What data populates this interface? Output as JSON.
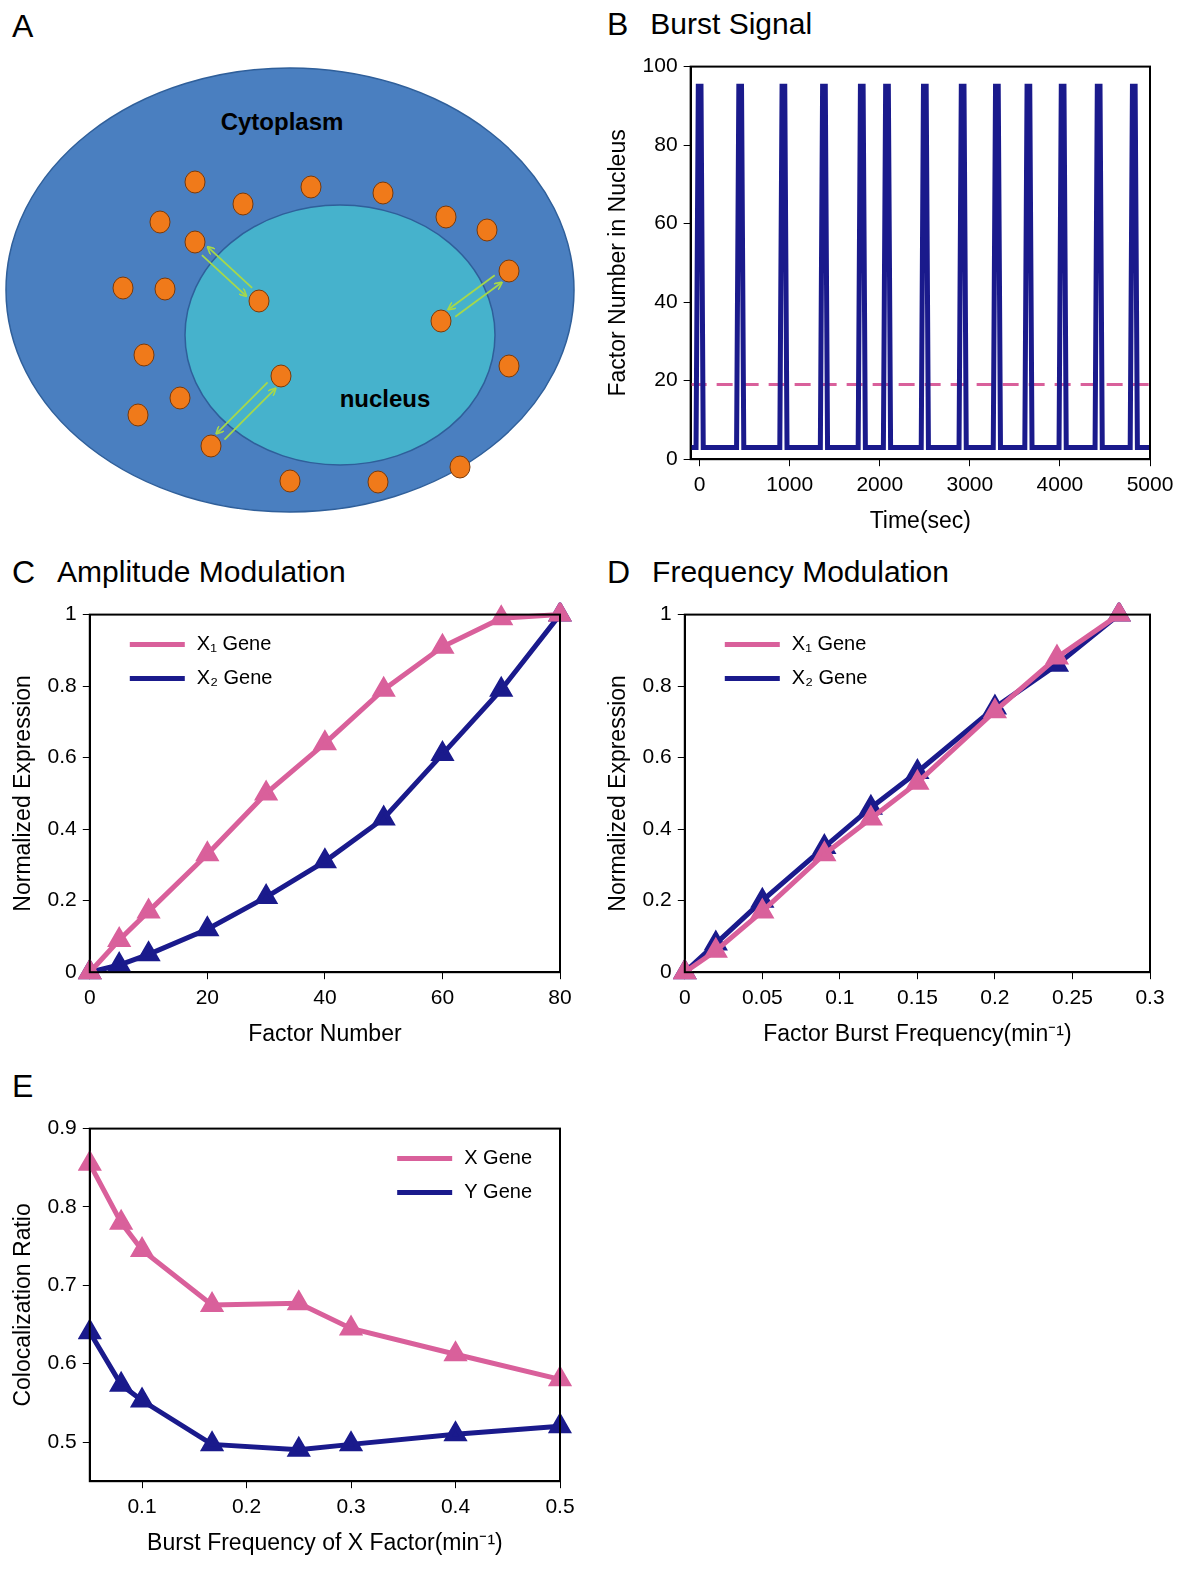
{
  "diagram": {
    "label": "A",
    "texts": {
      "cytoplasm": "Cytoplasm",
      "nucleus": "nucleus"
    }
  },
  "chart_data": [
    {
      "panel": "B",
      "type": "line",
      "title": "Burst Signal",
      "x_label": "Time(sec)",
      "y_label": "Factor Number in Nucleus",
      "x": [
        -100,
        -40,
        -15,
        15,
        40,
        410,
        435,
        465,
        490,
        890,
        915,
        945,
        970,
        1340,
        1365,
        1395,
        1420,
        1760,
        1785,
        1815,
        1840,
        2040,
        2065,
        2095,
        2120,
        2460,
        2485,
        2515,
        2540,
        2880,
        2905,
        2935,
        2960,
        3260,
        3285,
        3315,
        3340,
        3610,
        3635,
        3665,
        3690,
        3990,
        4015,
        4045,
        4070,
        4390,
        4415,
        4445,
        4470,
        4780,
        4805,
        4835,
        4860,
        5000
      ],
      "series": [
        {
          "name": "Factor Number in Nucleus",
          "color": "#1a1a8c",
          "marker": "none",
          "line_style": "solid",
          "values": [
            3,
            3,
            95,
            95,
            3,
            3,
            95,
            95,
            3,
            3,
            95,
            95,
            3,
            3,
            95,
            95,
            3,
            3,
            95,
            95,
            3,
            3,
            95,
            95,
            3,
            3,
            95,
            95,
            3,
            3,
            95,
            95,
            3,
            3,
            95,
            95,
            3,
            3,
            95,
            95,
            3,
            3,
            95,
            95,
            3,
            3,
            95,
            95,
            3,
            3,
            95,
            95,
            3,
            3
          ]
        }
      ],
      "reference_line": {
        "value": 19,
        "color": "#d9609b",
        "line_style": "dashed"
      },
      "xlim": [
        -100,
        5000
      ],
      "xticks": [
        0,
        1000,
        2000,
        3000,
        4000,
        5000
      ],
      "ylim": [
        0,
        100
      ],
      "yticks": [
        0,
        20,
        40,
        60,
        80,
        100
      ],
      "grid": false
    },
    {
      "panel": "C",
      "type": "line",
      "title": "Amplitude Modulation",
      "x_label": "Factor Number",
      "y_label": "Normalized Expression",
      "x": [
        0,
        5,
        10,
        20,
        30,
        40,
        50,
        60,
        70,
        80
      ],
      "series": [
        {
          "name": "X₁ Gene",
          "color": "#d9609b",
          "marker": "triangle",
          "line_style": "solid",
          "values": [
            0,
            0.09,
            0.17,
            0.33,
            0.5,
            0.64,
            0.79,
            0.91,
            0.99,
            1.0
          ]
        },
        {
          "name": "X₂ Gene",
          "color": "#1a1a8c",
          "marker": "triangle",
          "line_style": "solid",
          "values": [
            0,
            0.02,
            0.05,
            0.12,
            0.21,
            0.31,
            0.43,
            0.61,
            0.79,
            1.0
          ]
        }
      ],
      "xlim": [
        0,
        80
      ],
      "xticks": [
        0,
        20,
        40,
        60,
        80
      ],
      "ylim": [
        0,
        1
      ],
      "yticks": [
        0,
        0.2,
        0.4,
        0.6,
        0.8,
        1
      ],
      "grid": false,
      "legend": "upper left"
    },
    {
      "panel": "D",
      "type": "line",
      "title": "Frequency Modulation",
      "x_label": "Factor Burst Frequency(min⁻¹)",
      "y_label": "Normalized Expression",
      "x": [
        0,
        0.02,
        0.05,
        0.09,
        0.12,
        0.15,
        0.2,
        0.24,
        0.28
      ],
      "series": [
        {
          "name": "X₁ Gene",
          "color": "#d9609b",
          "marker": "triangle",
          "line_style": "solid",
          "values": [
            0,
            0.06,
            0.17,
            0.33,
            0.43,
            0.53,
            0.73,
            0.88,
            1.0
          ]
        },
        {
          "name": "X₂ Gene",
          "color": "#1a1a8c",
          "marker": "triangle",
          "line_style": "solid",
          "values": [
            0,
            0.08,
            0.2,
            0.35,
            0.46,
            0.56,
            0.74,
            0.86,
            1.0
          ]
        }
      ],
      "xlim": [
        0,
        0.3
      ],
      "xticks": [
        0,
        0.05,
        0.1,
        0.15,
        0.2,
        0.25,
        0.3
      ],
      "ylim": [
        0,
        1
      ],
      "yticks": [
        0,
        0.2,
        0.4,
        0.6,
        0.8,
        1
      ],
      "grid": false,
      "legend": "upper left"
    },
    {
      "panel": "E",
      "type": "line",
      "x_label": "Burst Frequency of X Factor(min⁻¹)",
      "y_label": "Colocalization Ratio",
      "x": [
        0.05,
        0.08,
        0.1,
        0.167,
        0.25,
        0.3,
        0.4,
        0.5
      ],
      "series": [
        {
          "name": "X Gene",
          "color": "#d9609b",
          "marker": "triangle",
          "line_style": "solid",
          "values": [
            0.855,
            0.78,
            0.745,
            0.675,
            0.677,
            0.645,
            0.612,
            0.58
          ]
        },
        {
          "name": "Y Gene",
          "color": "#1a1a8c",
          "marker": "triangle",
          "line_style": "solid",
          "values": [
            0.64,
            0.573,
            0.553,
            0.497,
            0.49,
            0.497,
            0.51,
            0.52
          ]
        }
      ],
      "xlim": [
        0.05,
        0.5
      ],
      "xticks": [
        0.1,
        0.2,
        0.3,
        0.4,
        0.5
      ],
      "ylim": [
        0.45,
        0.9
      ],
      "yticks": [
        0.5,
        0.6,
        0.7,
        0.8,
        0.9
      ],
      "grid": false,
      "legend": "upper right"
    }
  ]
}
